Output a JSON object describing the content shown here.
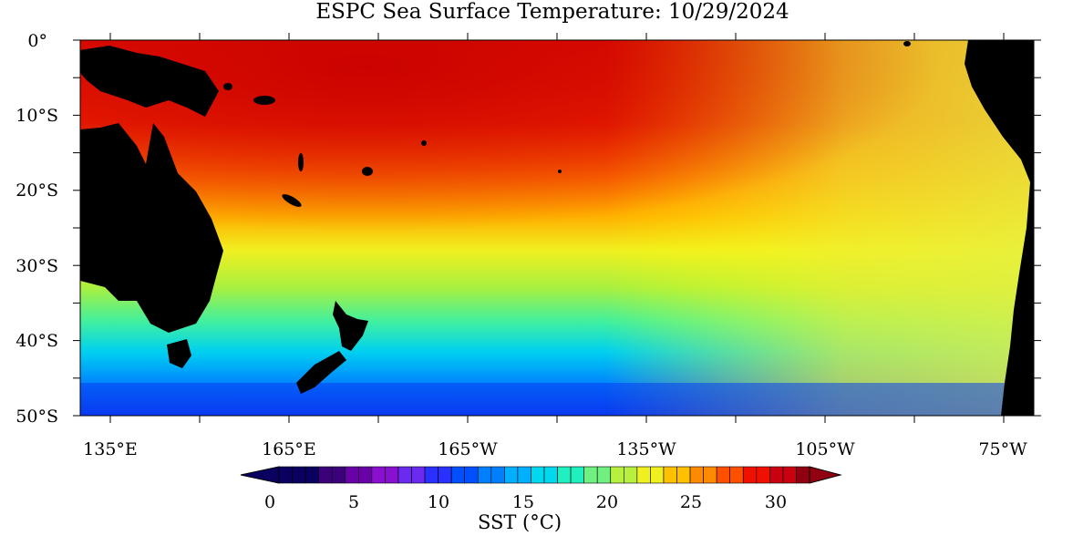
{
  "title": "ESPC Sea Surface Temperature: 10/29/2024",
  "lat_labels": [
    "0°",
    "10°S",
    "20°S",
    "30°S",
    "40°S",
    "50°S"
  ],
  "lon_labels": [
    "135°E",
    "165°E",
    "165°W",
    "135°W",
    "105°W",
    "75°W"
  ],
  "colorbar": {
    "title": "SST (°C)",
    "tick_labels": [
      "0",
      "5",
      "10",
      "15",
      "20",
      "25",
      "30"
    ],
    "min": -1,
    "max": 32,
    "colors": [
      "#0a0060",
      "#3b007a",
      "#6a00a8",
      "#8a10d0",
      "#6a2af0",
      "#2a30ff",
      "#0050ff",
      "#0080ff",
      "#00b0ff",
      "#00d8f0",
      "#20f0c0",
      "#70f080",
      "#b8f040",
      "#f0f020",
      "#ffc000",
      "#ff8a00",
      "#ff5000",
      "#f01000",
      "#c80010",
      "#900010"
    ]
  },
  "map": {
    "land_color": "#000000",
    "warm_pool_color": "#e81800",
    "cold_color": "#0a3af0",
    "grid": true
  }
}
